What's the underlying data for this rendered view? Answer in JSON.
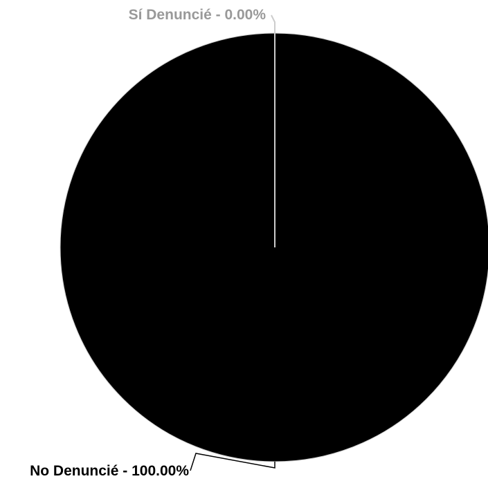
{
  "chart_data": {
    "type": "pie",
    "title": "",
    "slices": [
      {
        "label": "Sí Denuncié",
        "value": 0.0,
        "label_text": "Sí Denuncié - 0.00%",
        "color": "#999999"
      },
      {
        "label": "No Denuncié",
        "value": 100.0,
        "label_text": "No Denuncié - 100.00%",
        "color": "#000000"
      }
    ],
    "colors": {
      "background": "#ffffff",
      "slice_border": "#cccccc",
      "leader_line_light": "#cccccc",
      "leader_line_dark": "#000000"
    }
  }
}
